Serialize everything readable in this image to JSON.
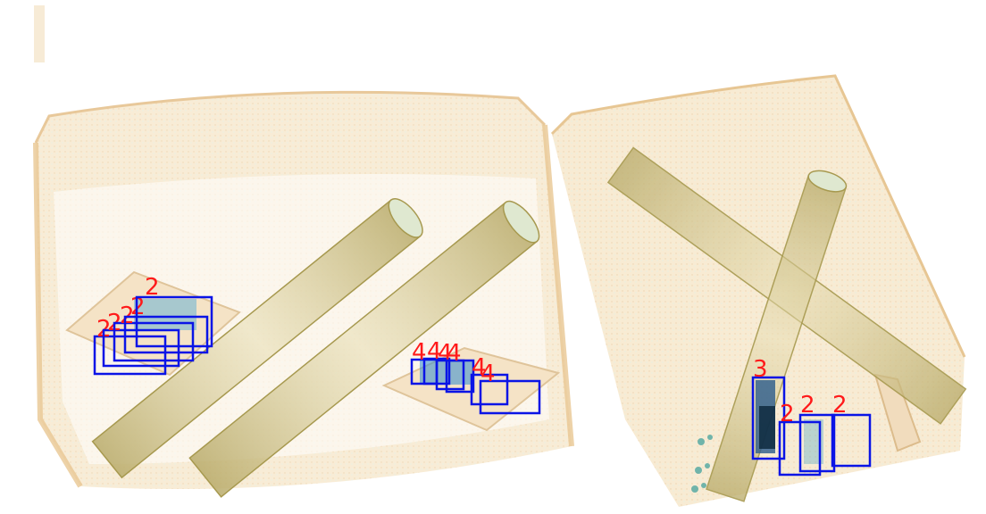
{
  "scene": {
    "background_color": "#ffffff",
    "container_tint": "#f3dcb4",
    "tube_tint": "#c9b67a",
    "box_color": "#0a14e6",
    "label_color": "#ff1a1a"
  },
  "detections": [
    {
      "label": "2"
    },
    {
      "label": "2"
    },
    {
      "label": "2"
    },
    {
      "label": "2"
    },
    {
      "label": "2"
    },
    {
      "label": "4"
    },
    {
      "label": "4"
    },
    {
      "label": "4"
    },
    {
      "label": "4"
    },
    {
      "label": "4"
    },
    {
      "label": "4"
    },
    {
      "label": "3"
    },
    {
      "label": "2"
    },
    {
      "label": "2"
    },
    {
      "label": "2"
    }
  ]
}
